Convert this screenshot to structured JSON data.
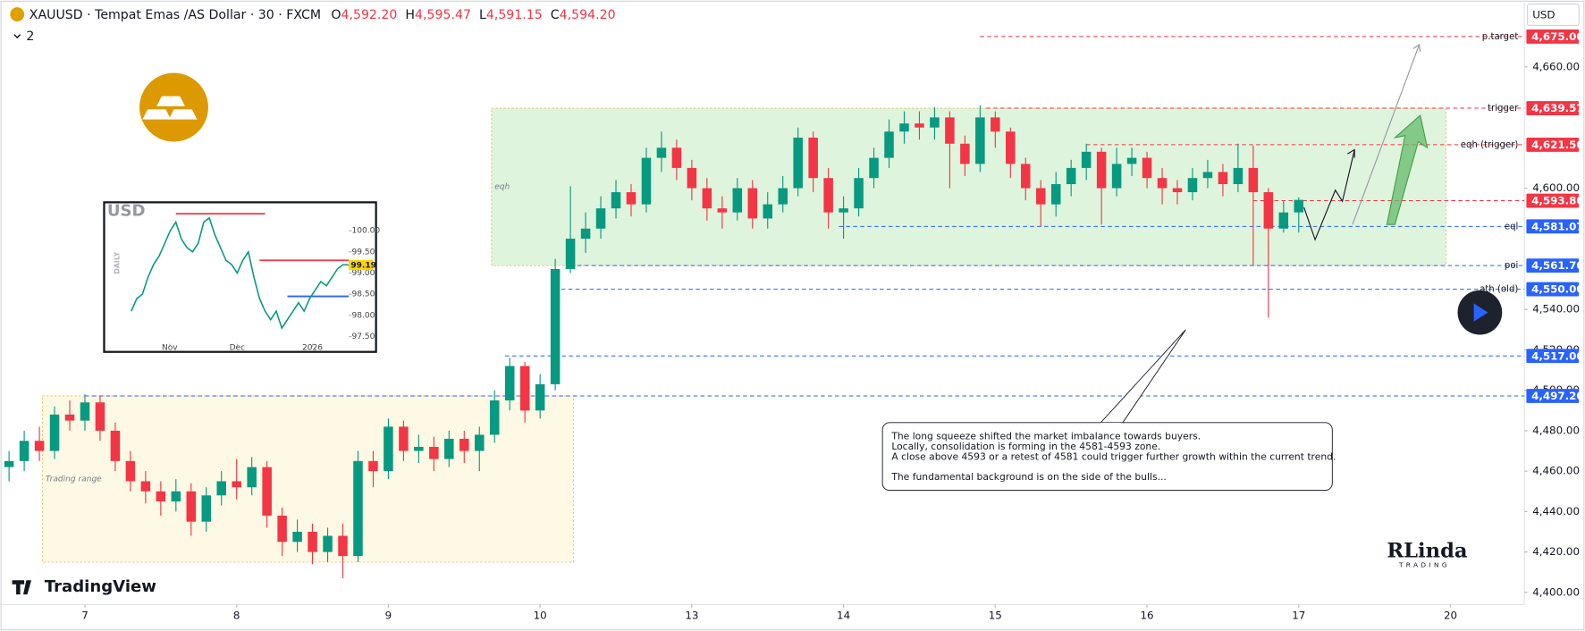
{
  "header": {
    "symbol": "XAUUSD · Tempat Emas /AS Dollar · 30 · FXCM",
    "ohlc": [
      {
        "key": "O",
        "value": "4,592.20"
      },
      {
        "key": "H",
        "value": "4,595.47"
      },
      {
        "key": "L",
        "value": "4,591.15"
      },
      {
        "key": "C",
        "value": "4,594.20"
      }
    ],
    "indicators": "2",
    "currency": "USD"
  },
  "callout": {
    "lines": [
      "The long squeeze shifted the market imbalance towards buyers.",
      "Locally, consolidation is forming in the 4581-4593 zone.",
      "A close above 4593 or a retest of 4581 could trigger further growth within the current trend.",
      "The fundamental background is on the side of the bulls..."
    ]
  },
  "brand": {
    "platform": "TradingView",
    "author": "RLinda",
    "author_sub": "TRADING"
  },
  "chart_data": [
    {
      "type": "candlestick",
      "x": [
        -0.5,
        -0.4,
        -0.3,
        -0.2,
        -0.1,
        0,
        0.1,
        0.2,
        0.3,
        0.4,
        0.5,
        0.6,
        0.7,
        0.8,
        0.9,
        1,
        1.1,
        1.2,
        1.3,
        1.4,
        1.5,
        1.6,
        1.7,
        1.8,
        1.9,
        2,
        2.1,
        2.2,
        2.3,
        2.4,
        2.5,
        2.6,
        2.7,
        2.8,
        2.9,
        3,
        3.1,
        3.2,
        3.3,
        3.4,
        3.5,
        3.6,
        3.7,
        3.8,
        3.9,
        4,
        4.1,
        4.2,
        4.3,
        4.4,
        4.5,
        4.6,
        4.7,
        4.8,
        4.9,
        5,
        5.1,
        5.2,
        5.3,
        5.4,
        5.5,
        5.6,
        5.7,
        5.8,
        5.9,
        6,
        6.1,
        6.2,
        6.3,
        6.4,
        6.5,
        6.6,
        6.7,
        6.8,
        6.9,
        7,
        7.1,
        7.2,
        7.3,
        7.4,
        7.5,
        7.6,
        7.7,
        7.8,
        7.9,
        8
      ],
      "open": [
        4462,
        4465,
        4475,
        4470,
        4488,
        4485,
        4494,
        4480,
        4465,
        4455,
        4450,
        4445,
        4450,
        4435,
        4448,
        4455,
        4452,
        4462,
        4438,
        4425,
        4430,
        4420,
        4428,
        4418,
        4465,
        4460,
        4482,
        4470,
        4472,
        4466,
        4476,
        4470,
        4478,
        4495,
        4512,
        4490,
        4503,
        4560,
        4575,
        4580,
        4590,
        4598,
        4592,
        4615,
        4620,
        4610,
        4600,
        4590,
        4588,
        4600,
        4585,
        4592,
        4600,
        4625,
        4605,
        4588,
        4590,
        4605,
        4615,
        4628,
        4632,
        4630,
        4635,
        4622,
        4612,
        4635,
        4628,
        4612,
        4600,
        4592,
        4602,
        4610,
        4618,
        4600,
        4612,
        4615,
        4605,
        4600,
        4598,
        4605,
        4608,
        4602,
        4610,
        4598,
        4580,
        4588
      ],
      "high": [
        4470,
        4480,
        4482,
        4492,
        4495,
        4498,
        4497,
        4484,
        4470,
        4460,
        4455,
        4456,
        4454,
        4452,
        4460,
        4466,
        4467,
        4465,
        4442,
        4436,
        4434,
        4432,
        4434,
        4470,
        4470,
        4486,
        4485,
        4478,
        4477,
        4480,
        4480,
        4482,
        4500,
        4516,
        4514,
        4508,
        4565,
        4601,
        4588,
        4596,
        4604,
        4602,
        4620,
        4628,
        4624,
        4614,
        4605,
        4596,
        4605,
        4604,
        4598,
        4606,
        4630,
        4628,
        4610,
        4596,
        4610,
        4620,
        4634,
        4638,
        4638,
        4640,
        4638,
        4626,
        4641,
        4638,
        4630,
        4615,
        4604,
        4608,
        4614,
        4622,
        4620,
        4620,
        4620,
        4618,
        4610,
        4604,
        4610,
        4614,
        4612,
        4622,
        4621,
        4600,
        4594,
        4595.47
      ],
      "low": [
        4455,
        4460,
        4465,
        4466,
        4480,
        4480,
        4475,
        4460,
        4450,
        4444,
        4438,
        4440,
        4428,
        4430,
        4443,
        4446,
        4448,
        4432,
        4418,
        4420,
        4414,
        4415,
        4407,
        4415,
        4452,
        4456,
        4465,
        4464,
        4460,
        4462,
        4464,
        4460,
        4474,
        4490,
        4484,
        4486,
        4500,
        4558,
        4568,
        4575,
        4585,
        4586,
        4588,
        4608,
        4604,
        4594,
        4584,
        4580,
        4584,
        4580,
        4580,
        4588,
        4596,
        4598,
        4580,
        4575,
        4586,
        4600,
        4610,
        4622,
        4624,
        4624,
        4600,
        4606,
        4608,
        4620,
        4605,
        4594,
        4581,
        4586,
        4596,
        4604,
        4582,
        4596,
        4606,
        4600,
        4592,
        4592,
        4594,
        4600,
        4596,
        4598,
        4562,
        4536,
        4578,
        4578
      ],
      "close": [
        4465,
        4475,
        4470,
        4488,
        4485,
        4494,
        4480,
        4465,
        4455,
        4450,
        4445,
        4450,
        4435,
        4448,
        4455,
        4452,
        4462,
        4438,
        4425,
        4430,
        4420,
        4428,
        4418,
        4465,
        4460,
        4482,
        4470,
        4472,
        4466,
        4476,
        4470,
        4478,
        4495,
        4512,
        4490,
        4503,
        4560,
        4575,
        4580,
        4590,
        4598,
        4592,
        4615,
        4620,
        4610,
        4600,
        4590,
        4588,
        4600,
        4585,
        4592,
        4600,
        4625,
        4605,
        4588,
        4590,
        4605,
        4615,
        4628,
        4632,
        4630,
        4635,
        4622,
        4612,
        4635,
        4628,
        4612,
        4600,
        4592,
        4602,
        4610,
        4618,
        4600,
        4612,
        4615,
        4605,
        4600,
        4598,
        4605,
        4608,
        4602,
        4610,
        4598,
        4580,
        4588,
        4594.2
      ],
      "up_color": "#089981",
      "down_color": "#f23645",
      "xlim": [
        -0.5596,
        9.487
      ],
      "xticks": [
        {
          "value": 0,
          "label": "7"
        },
        {
          "value": 1,
          "label": "8"
        },
        {
          "value": 2,
          "label": "9"
        },
        {
          "value": 3,
          "label": "10"
        },
        {
          "value": 4,
          "label": "13"
        },
        {
          "value": 5,
          "label": "14"
        },
        {
          "value": 6,
          "label": "15"
        },
        {
          "value": 7,
          "label": "16"
        },
        {
          "value": 8,
          "label": "17"
        },
        {
          "value": 9,
          "label": "20"
        }
      ],
      "ylim": [
        4394,
        4693
      ],
      "yticks": [
        {
          "value": 4400,
          "label": "4,400.00"
        },
        {
          "value": 4420,
          "label": "4,420.00"
        },
        {
          "value": 4440,
          "label": "4,440.00"
        },
        {
          "value": 4460,
          "label": "4,460.00"
        },
        {
          "value": 4480,
          "label": "4,480.00"
        },
        {
          "value": 4500,
          "label": "4,500.00"
        },
        {
          "value": 4520,
          "label": "4,520.00"
        },
        {
          "value": 4540,
          "label": "4,540.00"
        },
        {
          "value": 4600,
          "label": "4,600.00"
        },
        {
          "value": 4660,
          "label": "4,660.00"
        }
      ],
      "zones": [
        {
          "label": "eqh",
          "x": [
            2.68,
            8.97
          ],
          "y": [
            4561.7,
            4639.57
          ],
          "color": "#c9ecc6",
          "stroke": "#e0c060"
        },
        {
          "label": "Trading range",
          "x": [
            -0.28,
            3.22
          ],
          "y": [
            4415,
            4497.2
          ],
          "color": "#fbf5d2",
          "stroke": "#f0c060"
        }
      ],
      "levels": [
        {
          "value": 4675,
          "label": "4,675.00",
          "name": "p.target",
          "start": 5.9,
          "color": "#f23645"
        },
        {
          "value": 4639.57,
          "label": "4,639.57",
          "name": "trigger",
          "start": 5.94,
          "color": "#f23645"
        },
        {
          "value": 4621.5,
          "label": "4,621.50",
          "name": "eqh (trigger)",
          "start": 6.6,
          "color": "#f23645"
        },
        {
          "value": 4593.8,
          "label": "4,593.80",
          "start": 7.7,
          "color": "#f23645"
        },
        {
          "value": 4581.07,
          "label": "4,581.07",
          "name": "eql",
          "start": 4.97,
          "color": "#2962ff"
        },
        {
          "value": 4561.7,
          "label": "4,561.70",
          "name": "poi",
          "start": 3.2,
          "color": "#2962ff"
        },
        {
          "value": 4550,
          "label": "4,550.00",
          "name": "ath (old)",
          "start": 3.14,
          "color": "#2962ff"
        },
        {
          "value": 4517,
          "label": "4,517.00",
          "start": 2.77,
          "color": "#2962ff"
        },
        {
          "value": 4497.2,
          "label": "4,497.20",
          "start": 0,
          "color": "#2962ff"
        }
      ]
    },
    {
      "type": "line",
      "title": "USD",
      "y_label": "DAILY",
      "color": "#089981",
      "x": [
        0,
        1,
        2,
        3,
        4,
        5,
        6,
        7,
        8,
        9,
        10,
        11,
        12,
        13,
        14,
        15,
        16,
        17,
        18,
        19,
        20,
        21,
        22,
        23,
        24,
        25,
        26,
        27,
        28,
        29,
        30,
        31,
        32,
        33,
        34,
        35,
        36,
        37,
        38,
        39
      ],
      "values": [
        98.1,
        98.4,
        98.5,
        98.9,
        99.2,
        99.4,
        99.7,
        100.0,
        100.2,
        99.8,
        99.6,
        99.5,
        99.7,
        100.2,
        100.3,
        99.9,
        99.6,
        99.3,
        99.2,
        99.0,
        99.3,
        99.5,
        98.9,
        98.4,
        98.1,
        97.9,
        98.1,
        97.7,
        97.9,
        98.1,
        98.3,
        98.1,
        98.4,
        98.6,
        98.8,
        98.7,
        98.9,
        99.1,
        99.2,
        99.19
      ],
      "xlim": [
        -4.5,
        39
      ],
      "xticks": [
        {
          "value": 6.9,
          "label": "Nov"
        },
        {
          "value": 19,
          "label": "Dec"
        },
        {
          "value": 32.5,
          "label": "2026"
        }
      ],
      "ylim": [
        97.33,
        100.55
      ],
      "yticks": [
        {
          "value": 100,
          "label": "100.00"
        },
        {
          "value": 99.5,
          "label": "99.50"
        },
        {
          "value": 99,
          "label": "99.00"
        },
        {
          "value": 98.5,
          "label": "98.50"
        },
        {
          "value": 98,
          "label": "98.00"
        },
        {
          "value": 97.5,
          "label": "97.50"
        }
      ],
      "price_badge": {
        "value": 99.19,
        "label": "99.19",
        "color": "#ffd600"
      },
      "levels": [
        {
          "value": 100.4,
          "start": 8,
          "end": 24,
          "color": "#f23645"
        },
        {
          "value": 99.3,
          "start": 23,
          "end": 39,
          "color": "#f23645"
        },
        {
          "value": 98.45,
          "start": 28,
          "end": 39,
          "color": "#2962ff"
        }
      ]
    }
  ]
}
